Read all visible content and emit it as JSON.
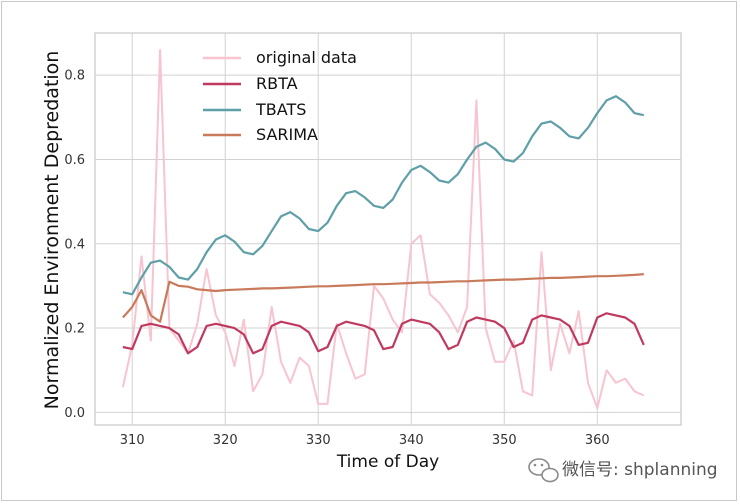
{
  "chart_data": {
    "type": "line",
    "xlabel": "Time of Day",
    "ylabel": "Normalized Environment Depredation",
    "xlim": [
      306,
      369
    ],
    "ylim": [
      -0.03,
      0.9
    ],
    "xticks": [
      310,
      320,
      330,
      340,
      350,
      360
    ],
    "yticks": [
      0.0,
      0.2,
      0.4,
      0.6,
      0.8
    ],
    "grid": true,
    "legend": "top-left",
    "series": [
      {
        "name": "original data",
        "color": "#f7c4cf",
        "x": [
          309,
          310,
          311,
          312,
          313,
          314,
          315,
          316,
          317,
          318,
          319,
          320,
          321,
          322,
          323,
          324,
          325,
          326,
          327,
          328,
          329,
          330,
          331,
          332,
          333,
          334,
          335,
          336,
          337,
          338,
          339,
          340,
          341,
          342,
          343,
          344,
          345,
          346,
          347,
          348,
          349,
          350,
          351,
          352,
          353,
          354,
          355,
          356,
          357,
          358,
          359,
          360,
          361,
          362,
          363,
          364,
          365
        ],
        "values": [
          0.06,
          0.16,
          0.37,
          0.17,
          0.86,
          0.2,
          0.17,
          0.14,
          0.21,
          0.34,
          0.23,
          0.19,
          0.11,
          0.22,
          0.05,
          0.09,
          0.25,
          0.12,
          0.07,
          0.13,
          0.11,
          0.02,
          0.02,
          0.21,
          0.14,
          0.08,
          0.09,
          0.3,
          0.27,
          0.22,
          0.19,
          0.4,
          0.42,
          0.28,
          0.26,
          0.23,
          0.19,
          0.25,
          0.74,
          0.2,
          0.12,
          0.12,
          0.17,
          0.05,
          0.04,
          0.38,
          0.1,
          0.21,
          0.14,
          0.24,
          0.07,
          0.01,
          0.1,
          0.07,
          0.08,
          0.05,
          0.04
        ]
      },
      {
        "name": "RBTA",
        "color": "#c0395e",
        "x": [
          309,
          310,
          311,
          312,
          313,
          314,
          315,
          316,
          317,
          318,
          319,
          320,
          321,
          322,
          323,
          324,
          325,
          326,
          327,
          328,
          329,
          330,
          331,
          332,
          333,
          334,
          335,
          336,
          337,
          338,
          339,
          340,
          341,
          342,
          343,
          344,
          345,
          346,
          347,
          348,
          349,
          350,
          351,
          352,
          353,
          354,
          355,
          356,
          357,
          358,
          359,
          360,
          361,
          362,
          363,
          364,
          365
        ],
        "values": [
          0.155,
          0.15,
          0.205,
          0.21,
          0.205,
          0.2,
          0.185,
          0.14,
          0.155,
          0.205,
          0.21,
          0.205,
          0.2,
          0.185,
          0.14,
          0.15,
          0.205,
          0.215,
          0.21,
          0.205,
          0.19,
          0.145,
          0.155,
          0.205,
          0.215,
          0.21,
          0.205,
          0.195,
          0.15,
          0.155,
          0.21,
          0.22,
          0.215,
          0.21,
          0.19,
          0.15,
          0.16,
          0.215,
          0.225,
          0.22,
          0.215,
          0.2,
          0.155,
          0.165,
          0.22,
          0.23,
          0.225,
          0.22,
          0.205,
          0.16,
          0.165,
          0.225,
          0.235,
          0.23,
          0.225,
          0.21,
          0.16
        ]
      },
      {
        "name": "TBATS",
        "color": "#5e9fa8",
        "x": [
          309,
          310,
          311,
          312,
          313,
          314,
          315,
          316,
          317,
          318,
          319,
          320,
          321,
          322,
          323,
          324,
          325,
          326,
          327,
          328,
          329,
          330,
          331,
          332,
          333,
          334,
          335,
          336,
          337,
          338,
          339,
          340,
          341,
          342,
          343,
          344,
          345,
          346,
          347,
          348,
          349,
          350,
          351,
          352,
          353,
          354,
          355,
          356,
          357,
          358,
          359,
          360,
          361,
          362,
          363,
          364,
          365
        ],
        "values": [
          0.285,
          0.28,
          0.32,
          0.355,
          0.36,
          0.345,
          0.32,
          0.315,
          0.34,
          0.38,
          0.41,
          0.42,
          0.405,
          0.38,
          0.375,
          0.395,
          0.43,
          0.465,
          0.475,
          0.46,
          0.435,
          0.43,
          0.45,
          0.49,
          0.52,
          0.525,
          0.51,
          0.49,
          0.485,
          0.505,
          0.545,
          0.575,
          0.585,
          0.57,
          0.55,
          0.545,
          0.565,
          0.6,
          0.63,
          0.64,
          0.625,
          0.6,
          0.595,
          0.615,
          0.655,
          0.685,
          0.69,
          0.675,
          0.655,
          0.65,
          0.675,
          0.71,
          0.74,
          0.75,
          0.735,
          0.71,
          0.705
        ]
      },
      {
        "name": "SARIMA",
        "color": "#c87a5a",
        "x": [
          309,
          310,
          311,
          312,
          313,
          314,
          315,
          316,
          317,
          318,
          319,
          320,
          321,
          322,
          323,
          324,
          325,
          326,
          327,
          328,
          329,
          330,
          331,
          332,
          333,
          334,
          335,
          336,
          337,
          338,
          339,
          340,
          341,
          342,
          343,
          344,
          345,
          346,
          347,
          348,
          349,
          350,
          351,
          352,
          353,
          354,
          355,
          356,
          357,
          358,
          359,
          360,
          361,
          362,
          363,
          364,
          365
        ],
        "values": [
          0.225,
          0.25,
          0.29,
          0.23,
          0.215,
          0.31,
          0.3,
          0.298,
          0.292,
          0.29,
          0.288,
          0.29,
          0.291,
          0.292,
          0.293,
          0.294,
          0.294,
          0.295,
          0.296,
          0.297,
          0.298,
          0.299,
          0.299,
          0.3,
          0.301,
          0.302,
          0.303,
          0.304,
          0.304,
          0.305,
          0.306,
          0.307,
          0.308,
          0.308,
          0.309,
          0.31,
          0.311,
          0.311,
          0.312,
          0.313,
          0.314,
          0.315,
          0.315,
          0.316,
          0.317,
          0.318,
          0.319,
          0.319,
          0.32,
          0.321,
          0.322,
          0.323,
          0.323,
          0.324,
          0.325,
          0.326,
          0.328
        ]
      }
    ]
  },
  "watermark": {
    "icon": "wechat-icon",
    "text": "微信号: shplanning"
  }
}
